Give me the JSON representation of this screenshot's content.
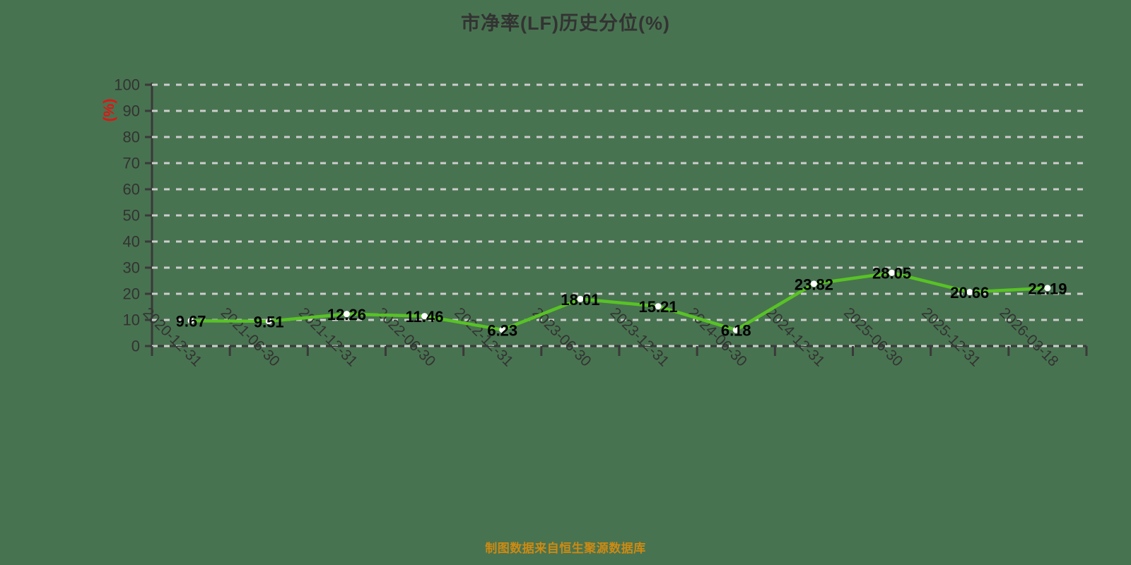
{
  "title": "市净率(LF)历史分位(%)",
  "footer": "制图数据来自恒生聚源数据库",
  "y_axis_name": "(%)",
  "colors": {
    "background": "#487350",
    "line": "#58C226",
    "marker_fill": "#ffffff",
    "grid": "#cdcdcd",
    "axis": "#3a3a3a",
    "tick_label": "#333333",
    "value_label": "#000000",
    "title": "#333333",
    "footer": "#CE8A12",
    "y_axis_name": "#E01414"
  },
  "chart_data": {
    "type": "line",
    "title": "市净率(LF)历史分位(%)",
    "xlabel": "",
    "ylabel": "(%)",
    "categories": [
      "2020-12-31",
      "2021-06-30",
      "2021-12-31",
      "2022-06-30",
      "2022-12-31",
      "2023-06-30",
      "2023-12-31",
      "2024-06-30",
      "2024-12-31",
      "2025-06-30",
      "2025-12-31",
      "2026-03-18"
    ],
    "values": [
      9.67,
      9.51,
      12.26,
      11.46,
      6.23,
      18.01,
      15.21,
      6.18,
      23.82,
      28.05,
      20.66,
      22.19
    ],
    "ylim": [
      0,
      100
    ],
    "ytick_step": 10,
    "grid": "horizontal-dashed",
    "boundary_gap": true,
    "legend_position": "none",
    "annotation": "data labels centered on each point"
  }
}
